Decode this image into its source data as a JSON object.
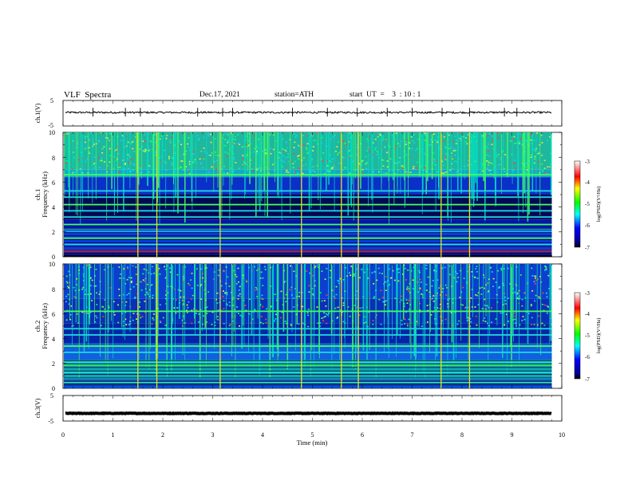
{
  "header": {
    "title": "VLF  Spectra",
    "date": "Dec.17, 2021",
    "station": "station=ATH",
    "start": "start  UT  =    3  : 10 : 1"
  },
  "chart_data": {
    "type": "heatmap",
    "xlabel": "Time  (min)",
    "xlim": [
      0,
      10
    ],
    "x_ticks": [
      "0",
      "1",
      "2",
      "3",
      "4",
      "5",
      "6",
      "7",
      "8",
      "9",
      "10"
    ],
    "data_end_min": 9.8,
    "panels": [
      {
        "id": "ch1-waveform",
        "type": "line",
        "ylabel": "ch.1(V)",
        "ylim": [
          -5,
          5
        ],
        "y_ticks": [
          "5",
          "-5"
        ],
        "baseline_v": 0.3,
        "noise_v": 0.35,
        "spike_times_min": [
          0.6,
          1.25,
          1.55,
          2.7,
          3.2,
          3.4,
          4.6,
          5.3,
          5.9,
          6.5,
          7.0,
          7.6,
          8.15,
          8.85,
          9.1
        ]
      },
      {
        "id": "ch1-spectrogram",
        "type": "heatmap",
        "ylabel": "Frequency  (kHz)",
        "ylabel2": "ch.1",
        "ylim_khz": [
          0,
          10
        ],
        "y_ticks": [
          "0",
          "2",
          "4",
          "6",
          "8",
          "10"
        ],
        "colorbar": {
          "label": "log(PSD)(V²/Hz)",
          "range": [
            -7,
            -3
          ],
          "ticks": [
            "-3",
            "-4",
            "-5",
            "-6",
            "-7"
          ]
        },
        "bright_lines_khz": [
          6.6,
          5.3,
          4.8,
          4.2,
          3.7,
          3.2,
          2.6,
          2.2,
          2.0,
          1.5,
          1.0
        ],
        "gap_bands_khz": [
          [
            0.0,
            0.08
          ],
          [
            0.42,
            0.52
          ]
        ],
        "yellow_times_min": [
          1.5,
          1.88,
          3.15,
          4.78,
          5.58,
          5.92,
          7.58,
          8.15
        ]
      },
      {
        "id": "ch2-spectrogram",
        "type": "heatmap",
        "ylabel": "Frequency  (kHz)",
        "ylabel2": "ch.2",
        "ylim_khz": [
          0,
          10
        ],
        "y_ticks": [
          "0",
          "2",
          "4",
          "6",
          "8",
          "10"
        ],
        "colorbar": {
          "label": "log(PSD)(V²/Hz)",
          "range": [
            -7,
            -3
          ],
          "ticks": [
            "-3",
            "-4",
            "-5",
            "-6",
            "-7"
          ]
        },
        "bright_lines_khz": [
          6.2,
          4.8,
          4.3,
          3.4,
          2.9,
          2.1,
          1.9,
          1.3,
          0.8,
          0.5
        ],
        "yellow_times_min": [
          1.5,
          1.88,
          3.15,
          4.78,
          5.58,
          5.92,
          7.58,
          8.15
        ]
      },
      {
        "id": "ch3-waveform",
        "type": "line",
        "ylabel": "ch.3(V)",
        "ylim": [
          -5,
          5
        ],
        "y_ticks": [
          "5",
          "-5"
        ],
        "baseline_v": -2.0,
        "noise_v": 0.1,
        "spike_times_min": []
      }
    ]
  }
}
